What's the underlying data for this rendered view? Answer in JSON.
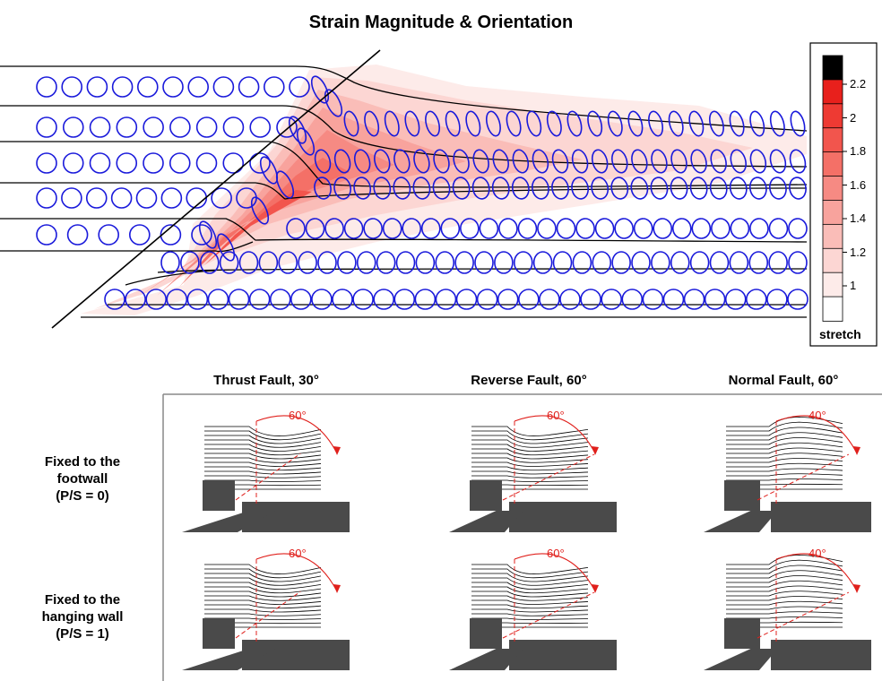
{
  "title": "Strain Magnitude & Orientation",
  "colorbar": {
    "ticks": [
      "2.2",
      "2",
      "1.8",
      "1.6",
      "1.4",
      "1.2",
      "1"
    ],
    "label": "stretch",
    "colors": [
      "#000000",
      "#e8201c",
      "#ee3a33",
      "#f2554d",
      "#f47067",
      "#f68a83",
      "#f8a39d",
      "#fabdb8",
      "#fcd6d3",
      "#fdebe9",
      "#ffffff"
    ]
  },
  "columns": [
    "Thrust Fault, 30°",
    "Reverse Fault, 60°",
    "Normal Fault, 60°"
  ],
  "rows": [
    [
      "Fixed to the",
      "footwall",
      "(P/S = 0)"
    ],
    [
      "Fixed to the",
      "hanging wall",
      "(P/S = 1)"
    ]
  ],
  "angles": [
    [
      "60°",
      "60°",
      "40°"
    ],
    [
      "60°",
      "60°",
      "40°"
    ]
  ],
  "colors": {
    "markers": "#1a1adb",
    "annotation": "#e0201c",
    "block": "#4a4a4a"
  }
}
